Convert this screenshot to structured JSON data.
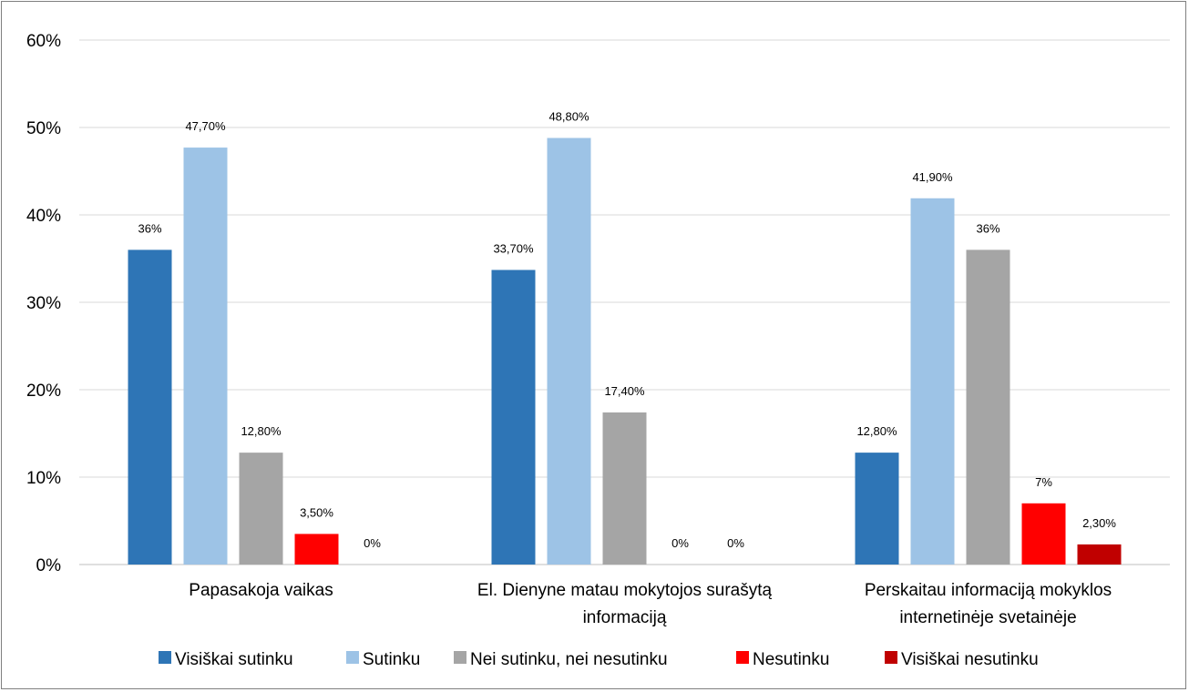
{
  "chart_data": {
    "type": "bar",
    "categories": [
      [
        "Papasakoja vaikas"
      ],
      [
        "El. Dienyne matau mokytojos surašytą",
        "informaciją"
      ],
      [
        "Perskaitau informaciją mokyklos",
        "internetinėje svetainėje"
      ]
    ],
    "series": [
      {
        "name": "Visiškai sutinku",
        "color": "#2E75B6",
        "values": [
          36,
          33.7,
          12.8
        ],
        "labels": [
          "36%",
          "33,70%",
          "12,80%"
        ]
      },
      {
        "name": "Sutinku",
        "color": "#9DC3E6",
        "values": [
          47.7,
          48.8,
          41.9
        ],
        "labels": [
          "47,70%",
          "48,80%",
          "41,90%"
        ]
      },
      {
        "name": "Nei sutinku, nei nesutinku",
        "color": "#A5A5A5",
        "values": [
          12.8,
          17.4,
          36
        ],
        "labels": [
          "12,80%",
          "17,40%",
          "36%"
        ]
      },
      {
        "name": "Nesutinku",
        "color": "#FF0000",
        "values": [
          3.5,
          0,
          7
        ],
        "labels": [
          "3,50%",
          "0%",
          "7%"
        ]
      },
      {
        "name": "Visiškai nesutinku",
        "color": "#C00000",
        "values": [
          0,
          0,
          2.3
        ],
        "labels": [
          "0%",
          "0%",
          "2,30%"
        ]
      }
    ],
    "y_ticks": [
      "0%",
      "10%",
      "20%",
      "30%",
      "40%",
      "50%",
      "60%"
    ],
    "ylim": [
      0,
      60
    ],
    "grid": true,
    "legend_position": "bottom"
  }
}
